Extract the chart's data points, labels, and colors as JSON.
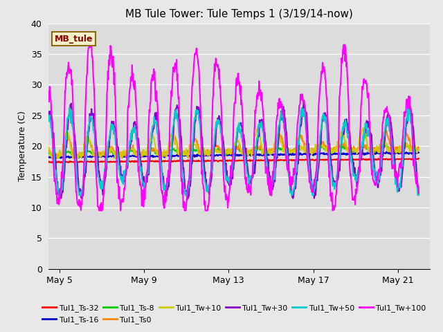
{
  "title": "MB Tule Tower: Tule Temps 1 (3/19/14-now)",
  "ylabel": "Temperature (C)",
  "xlim_days": [
    4.5,
    22.5
  ],
  "ylim": [
    0,
    40
  ],
  "yticks": [
    0,
    5,
    10,
    15,
    20,
    25,
    30,
    35,
    40
  ],
  "xtick_positions": [
    5,
    9,
    13,
    17,
    21
  ],
  "xtick_labels": [
    "May 5",
    "May 9",
    "May 13",
    "May 17",
    "May 21"
  ],
  "bg_color": "#e8e8e8",
  "plot_bg_color": "#dcdcdc",
  "grid_color": "#ffffff",
  "legend_label": "MB_tule",
  "legend_box_facecolor": "#f5f0c8",
  "legend_box_edgecolor": "#8b6914",
  "legend_text_color": "#8b0000",
  "series": [
    {
      "label": "Tul1_Ts-32",
      "color": "#ff0000",
      "lw": 1.5
    },
    {
      "label": "Tul1_Ts-16",
      "color": "#0000cc",
      "lw": 1.5
    },
    {
      "label": "Tul1_Ts-8",
      "color": "#00cc00",
      "lw": 1.5
    },
    {
      "label": "Tul1_Ts0",
      "color": "#ff8800",
      "lw": 1.5
    },
    {
      "label": "Tul1_Tw+10",
      "color": "#cccc00",
      "lw": 1.5
    },
    {
      "label": "Tul1_Tw+30",
      "color": "#8800cc",
      "lw": 1.5
    },
    {
      "label": "Tul1_Tw+50",
      "color": "#00cccc",
      "lw": 1.5
    },
    {
      "label": "Tul1_Tw+100",
      "color": "#ff00ff",
      "lw": 1.5
    }
  ],
  "legend_ncol": 6,
  "legend_fontsize": 8
}
